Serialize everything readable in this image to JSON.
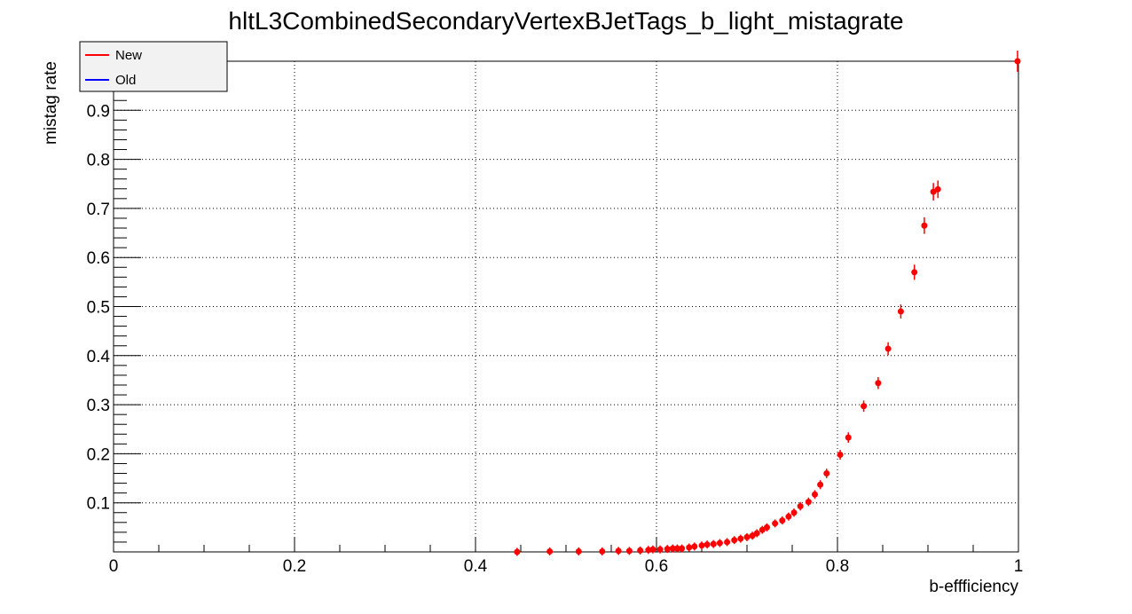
{
  "chart_data": {
    "type": "scatter",
    "title": "hltL3CombinedSecondaryVertexBJetTags_b_light_mistagrate",
    "xlabel": "b-effficiency",
    "ylabel": "mistag rate",
    "xlim": [
      0,
      1
    ],
    "ylim": [
      0,
      1
    ],
    "x_ticks": [
      "0",
      "0.2",
      "0.4",
      "0.6",
      "0.8",
      "1"
    ],
    "y_ticks": [
      "0.1",
      "0.2",
      "0.3",
      "0.4",
      "0.5",
      "0.6",
      "0.7",
      "0.8",
      "0.9"
    ],
    "grid": true,
    "legend": {
      "placement": "top-left",
      "entries": [
        {
          "name": "New",
          "color": "#ff0000"
        },
        {
          "name": "Old",
          "color": "#0000ff"
        }
      ]
    },
    "series": [
      {
        "name": "New",
        "color": "#ff0000",
        "points": [
          {
            "x": 0.446,
            "y": 0.0
          },
          {
            "x": 0.482,
            "y": 0.001
          },
          {
            "x": 0.514,
            "y": 0.001
          },
          {
            "x": 0.54,
            "y": 0.001
          },
          {
            "x": 0.558,
            "y": 0.002
          },
          {
            "x": 0.57,
            "y": 0.002
          },
          {
            "x": 0.582,
            "y": 0.003
          },
          {
            "x": 0.591,
            "y": 0.004
          },
          {
            "x": 0.596,
            "y": 0.005
          },
          {
            "x": 0.604,
            "y": 0.005
          },
          {
            "x": 0.612,
            "y": 0.006
          },
          {
            "x": 0.618,
            "y": 0.007
          },
          {
            "x": 0.623,
            "y": 0.007
          },
          {
            "x": 0.628,
            "y": 0.007
          },
          {
            "x": 0.636,
            "y": 0.009
          },
          {
            "x": 0.642,
            "y": 0.011
          },
          {
            "x": 0.65,
            "y": 0.013
          },
          {
            "x": 0.656,
            "y": 0.015
          },
          {
            "x": 0.663,
            "y": 0.016
          },
          {
            "x": 0.67,
            "y": 0.018
          },
          {
            "x": 0.678,
            "y": 0.02
          },
          {
            "x": 0.686,
            "y": 0.024
          },
          {
            "x": 0.693,
            "y": 0.027
          },
          {
            "x": 0.7,
            "y": 0.03
          },
          {
            "x": 0.706,
            "y": 0.033
          },
          {
            "x": 0.711,
            "y": 0.038
          },
          {
            "x": 0.717,
            "y": 0.045
          },
          {
            "x": 0.722,
            "y": 0.05
          },
          {
            "x": 0.731,
            "y": 0.058
          },
          {
            "x": 0.739,
            "y": 0.064
          },
          {
            "x": 0.746,
            "y": 0.072
          },
          {
            "x": 0.752,
            "y": 0.08
          },
          {
            "x": 0.759,
            "y": 0.093
          },
          {
            "x": 0.768,
            "y": 0.102
          },
          {
            "x": 0.775,
            "y": 0.117
          },
          {
            "x": 0.781,
            "y": 0.137
          },
          {
            "x": 0.788,
            "y": 0.16
          },
          {
            "x": 0.803,
            "y": 0.198
          },
          {
            "x": 0.812,
            "y": 0.233
          },
          {
            "x": 0.829,
            "y": 0.297
          },
          {
            "x": 0.845,
            "y": 0.344
          },
          {
            "x": 0.856,
            "y": 0.414
          },
          {
            "x": 0.87,
            "y": 0.49
          },
          {
            "x": 0.885,
            "y": 0.57
          },
          {
            "x": 0.896,
            "y": 0.665
          },
          {
            "x": 0.906,
            "y": 0.734
          },
          {
            "x": 0.911,
            "y": 0.739
          },
          {
            "x": 0.999,
            "y": 1.0
          }
        ]
      }
    ]
  }
}
